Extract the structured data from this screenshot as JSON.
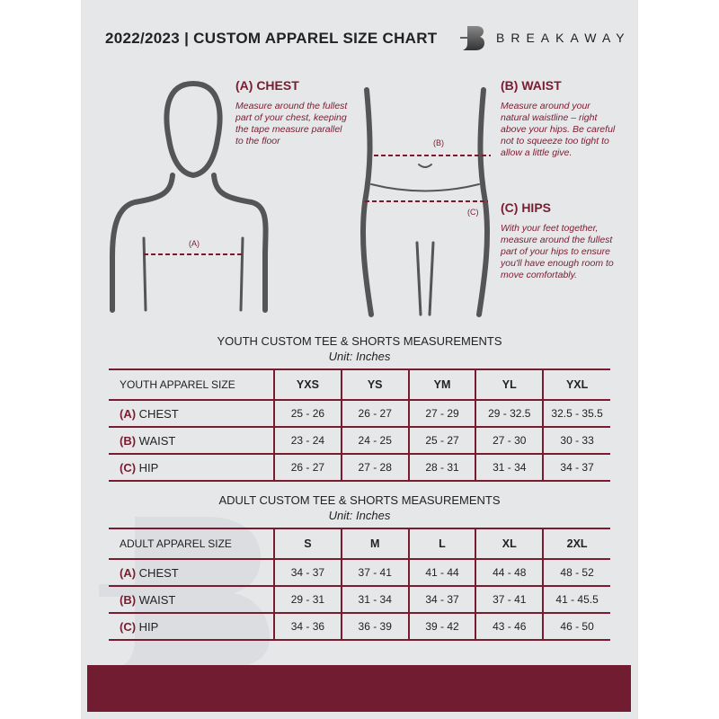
{
  "header": {
    "title": "2022/2023  |  CUSTOM APPAREL SIZE CHART",
    "brand": "BREAKAWAY"
  },
  "chest": {
    "title": "(A) CHEST",
    "text": "Measure around the fullest part of your chest, keeping the tape measure parallel to the floor",
    "marker": "(A)"
  },
  "waist": {
    "title": "(B) WAIST",
    "text": "Measure around your natural waistline – right above your hips. Be careful not to squeeze too tight to allow a little give.",
    "marker": "(B)"
  },
  "hips": {
    "title": "(C) HIPS",
    "text": "With your feet together, measure around the fullest part of your hips to ensure you'll have enough room to move comfortably.",
    "marker": "(C)"
  },
  "youth": {
    "title": "YOUTH CUSTOM TEE & SHORTS MEASUREMENTS",
    "unit": "Unit: Inches",
    "header": [
      "YOUTH APPAREL SIZE",
      "YXS",
      "YS",
      "YM",
      "YL",
      "YXL"
    ],
    "rows": [
      {
        "code": "(A)",
        "name": "CHEST",
        "values": [
          "25 - 26",
          "26 - 27",
          "27 - 29",
          "29 - 32.5",
          "32.5 - 35.5"
        ]
      },
      {
        "code": "(B)",
        "name": "WAIST",
        "values": [
          "23 - 24",
          "24 - 25",
          "25 - 27",
          "27 - 30",
          "30 - 33"
        ]
      },
      {
        "code": "(C)",
        "name": "HIP",
        "values": [
          "26 - 27",
          "27 - 28",
          "28 - 31",
          "31 - 34",
          "34 - 37"
        ]
      }
    ]
  },
  "adult": {
    "title": "ADULT CUSTOM TEE & SHORTS MEASUREMENTS",
    "unit": "Unit: Inches",
    "header": [
      "ADULT APPAREL SIZE",
      "S",
      "M",
      "L",
      "XL",
      "2XL"
    ],
    "rows": [
      {
        "code": "(A)",
        "name": "CHEST",
        "values": [
          "34 - 37",
          "37 - 41",
          "41 - 44",
          "44 - 48",
          "48 - 52"
        ]
      },
      {
        "code": "(B)",
        "name": "WAIST",
        "values": [
          "29 - 31",
          "31 - 34",
          "34 - 37",
          "37 - 41",
          "41 - 45.5"
        ]
      },
      {
        "code": "(C)",
        "name": "HIP",
        "values": [
          "34 - 36",
          "36 - 39",
          "39 - 42",
          "43 - 46",
          "46 - 50"
        ]
      }
    ]
  },
  "colors": {
    "accent": "#7a1c30",
    "background": "#e6e7e9",
    "band": "#721c31"
  }
}
